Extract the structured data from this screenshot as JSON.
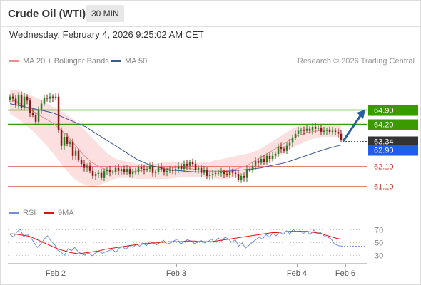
{
  "header": {
    "title": "Crude Oil (WTI)",
    "timeframe": "30 MIN",
    "datetime": "Wednesday, February 4, 2026 9:25:02 AM CET"
  },
  "legend": {
    "ma20": "MA 20 + Bollinger Bands",
    "ma50": "MA 50",
    "ma20_color": "#f08c8c",
    "ma50_color": "#3b5998",
    "credit": "Research © 2026 Trading Central"
  },
  "osc_legend": {
    "rsi": "RSI",
    "ma9": "9MA",
    "rsi_color": "#6f8fdc",
    "ma9_color": "#e01010"
  },
  "colors": {
    "resistance": "#3a9a00",
    "last_price": "#333333",
    "pivot": "#1e5ee8",
    "support": "#e67c7c",
    "candle_up": "#2a7d2a",
    "candle_down": "#8a1a1a",
    "arrow": "#2a5f9e"
  },
  "chart_data": [
    {
      "type": "line",
      "title": "Crude Oil (WTI)",
      "timeframe": "30 MIN",
      "x_tick_labels": [
        "Feb 2",
        "Feb 3",
        "Feb 4",
        "Feb 6"
      ],
      "ylim": [
        60.5,
        66.0
      ],
      "levels": [
        {
          "value": 64.9,
          "label": "64.90",
          "kind": "resistance"
        },
        {
          "value": 64.2,
          "label": "64.20",
          "kind": "resistance"
        },
        {
          "value": 63.34,
          "label": "63.34",
          "kind": "last_price"
        },
        {
          "value": 62.9,
          "label": "62.90",
          "kind": "pivot"
        },
        {
          "value": 62.1,
          "label": "62.10",
          "kind": "support"
        },
        {
          "value": 61.1,
          "label": "61.10",
          "kind": "support"
        }
      ],
      "close": [
        65.55,
        65.45,
        65.15,
        65.65,
        65.0,
        65.55,
        65.35,
        64.75,
        64.65,
        64.3,
        64.9,
        65.2,
        65.5,
        65.45,
        65.55,
        65.5,
        65.55,
        63.9,
        63.1,
        63.55,
        63.2,
        63.3,
        62.6,
        62.85,
        62.4,
        62.2,
        62.0,
        62.1,
        61.85,
        61.6,
        61.7,
        61.75,
        61.5,
        61.85,
        61.9,
        61.8,
        61.8,
        62.0,
        61.85,
        61.95,
        61.8,
        61.95,
        61.7,
        61.8,
        61.8,
        62.05,
        61.95,
        61.9,
        61.95,
        62.1,
        61.75,
        61.8,
        62.05,
        61.95,
        61.8,
        61.85,
        61.9,
        61.85,
        61.95,
        62.1,
        61.95,
        62.2,
        62.1,
        62.3,
        62.2,
        61.9,
        62.0,
        61.75,
        61.9,
        61.6,
        61.65,
        61.7,
        61.75,
        61.75,
        61.8,
        61.7,
        61.65,
        61.85,
        61.75,
        61.7,
        61.4,
        61.6,
        61.5,
        61.9,
        61.9,
        62.1,
        62.35,
        62.25,
        62.45,
        62.3,
        62.6,
        62.45,
        62.6,
        62.7,
        63.05,
        62.95,
        62.85,
        63.1,
        63.25,
        63.5,
        63.7,
        63.85,
        63.9,
        63.85,
        63.95,
        63.85,
        64.05,
        63.95,
        64.0,
        63.8,
        63.85,
        63.9,
        63.8,
        63.85,
        63.8,
        63.7,
        63.4
      ],
      "ma20": [
        65.4,
        65.35,
        65.3,
        65.2,
        65.1,
        65.0,
        64.9,
        64.8,
        64.7,
        64.6,
        64.5,
        64.4,
        64.3,
        64.2,
        64.05,
        63.9,
        63.75,
        63.6,
        63.4,
        63.2,
        63.0,
        62.8,
        62.6,
        62.45,
        62.3,
        62.2,
        62.1,
        62.0,
        61.95,
        61.9,
        61.85,
        61.8,
        61.8,
        61.8,
        61.8,
        61.8,
        61.82,
        61.84,
        61.86,
        61.88,
        61.9,
        61.9,
        61.9,
        61.9,
        61.92,
        61.94,
        61.96,
        61.98,
        62.0,
        62.02,
        62.02,
        62.02,
        62.0,
        61.98,
        61.95,
        61.92,
        61.9,
        61.88,
        61.86,
        61.85,
        61.84,
        61.84,
        61.85,
        61.86,
        61.88,
        61.9,
        61.92,
        61.95,
        62.0,
        62.05,
        62.1,
        62.2,
        62.3,
        62.4,
        62.5,
        62.6,
        62.7,
        62.8,
        62.9,
        63.0,
        63.1,
        63.2,
        63.3,
        63.4,
        63.5,
        63.6,
        63.65,
        63.7,
        63.75,
        63.8,
        63.82,
        63.84,
        63.86,
        63.88,
        63.9,
        63.9,
        63.9,
        63.88,
        63.86
      ],
      "bb_upper": [
        65.9,
        65.9,
        65.85,
        65.75,
        65.65,
        65.55,
        65.45,
        65.35,
        65.2,
        65.05,
        64.9,
        64.8,
        64.65,
        64.5,
        64.3,
        64.1,
        63.85,
        63.6,
        63.35,
        63.1,
        62.85,
        62.65,
        62.5,
        62.4,
        62.35,
        62.3,
        62.25,
        62.2,
        62.2,
        62.2,
        62.2,
        62.22,
        62.25,
        62.28,
        62.3,
        62.3,
        62.3,
        62.28,
        62.26,
        62.25,
        62.25,
        62.28,
        62.3,
        62.35,
        62.4,
        62.45,
        62.5,
        62.55,
        62.6,
        62.65,
        62.7,
        62.75,
        62.85,
        62.95,
        63.1,
        63.25,
        63.4,
        63.55,
        63.7,
        63.85,
        64.0,
        64.1,
        64.15,
        64.2,
        64.2,
        64.2,
        64.2,
        64.2,
        64.15,
        64.15,
        64.1
      ],
      "bb_lower": [
        64.7,
        64.55,
        64.4,
        64.2,
        64.0,
        63.8,
        63.55,
        63.3,
        63.05,
        62.75,
        62.45,
        62.15,
        61.85,
        61.6,
        61.4,
        61.25,
        61.15,
        61.1,
        61.1,
        61.15,
        61.25,
        61.35,
        61.45,
        61.5,
        61.5,
        61.5,
        61.48,
        61.45,
        61.45,
        61.45,
        61.45,
        61.45,
        61.45,
        61.45,
        61.47,
        61.5,
        61.52,
        61.55,
        61.55,
        61.55,
        61.55,
        61.52,
        61.5,
        61.48,
        61.45,
        61.45,
        61.45,
        61.5,
        61.55,
        61.65,
        61.75,
        61.85,
        61.95,
        62.05,
        62.15,
        62.3,
        62.45,
        62.6,
        62.75,
        62.9,
        63.05,
        63.15,
        63.25,
        63.35,
        63.45,
        63.5,
        63.55,
        63.55,
        63.55,
        63.55,
        63.55
      ],
      "ma50": [
        65.2,
        65.15,
        65.1,
        65.05,
        65.0,
        64.95,
        64.9,
        64.85,
        64.8,
        64.75,
        64.65,
        64.55,
        64.45,
        64.35,
        64.25,
        64.15,
        64.05,
        63.9,
        63.75,
        63.6,
        63.45,
        63.3,
        63.15,
        63.0,
        62.85,
        62.7,
        62.55,
        62.4,
        62.3,
        62.2,
        62.1,
        62.05,
        62.0,
        61.95,
        61.9,
        61.88,
        61.86,
        61.84,
        61.82,
        61.8,
        61.8,
        61.8,
        61.8,
        61.8,
        61.8,
        61.82,
        61.84,
        61.86,
        61.88,
        61.9,
        61.92,
        61.94,
        61.97,
        62.0,
        62.05,
        62.1,
        62.15,
        62.2,
        62.25,
        62.32,
        62.4,
        62.48,
        62.56,
        62.64,
        62.72,
        62.8,
        62.88,
        62.95,
        63.02,
        63.08,
        63.14
      ],
      "projection_arrow": {
        "from": 63.34,
        "to": 64.9
      }
    },
    {
      "type": "line",
      "title": "RSI",
      "series": [
        {
          "name": "RSI",
          "values": [
            62,
            58,
            66,
            70,
            59,
            63,
            58,
            50,
            42,
            47,
            55,
            60,
            52,
            47,
            38,
            34,
            30,
            40,
            37,
            42,
            35,
            32,
            30,
            34,
            29,
            33,
            36,
            33,
            35,
            37,
            39,
            34,
            41,
            43,
            39,
            45,
            42,
            47,
            44,
            48,
            45,
            51,
            49,
            46,
            50,
            53,
            47,
            49,
            52,
            55,
            47,
            51,
            54,
            52,
            48,
            50,
            53,
            49,
            51,
            55,
            50,
            57,
            52,
            58,
            55,
            50,
            54,
            44,
            49,
            41,
            45,
            50,
            54,
            58,
            55,
            62,
            58,
            64,
            60,
            66,
            62,
            68,
            63,
            70,
            66,
            68,
            64,
            67,
            62,
            69,
            64,
            65,
            60,
            58,
            56,
            48,
            45,
            44
          ]
        },
        {
          "name": "9MA",
          "values": [
            63,
            63,
            62,
            61,
            60,
            58,
            55,
            52,
            49,
            46,
            43,
            40,
            38,
            36,
            34,
            33,
            32,
            33,
            34,
            35,
            36,
            37,
            39,
            40,
            41,
            42,
            43,
            44,
            45,
            46,
            47,
            48,
            48,
            49,
            49,
            50,
            50,
            51,
            51,
            51,
            51,
            52,
            52,
            52,
            51,
            51,
            51,
            51,
            52,
            53,
            54,
            55,
            56,
            57,
            58,
            59,
            60,
            61,
            62,
            63,
            64,
            65,
            65,
            66,
            66,
            67,
            67,
            67,
            67,
            67,
            66,
            65,
            64,
            62,
            60,
            58,
            56,
            55
          ]
        }
      ],
      "ylim": [
        20,
        80
      ],
      "y_ticks": [
        70,
        50,
        30
      ]
    }
  ]
}
